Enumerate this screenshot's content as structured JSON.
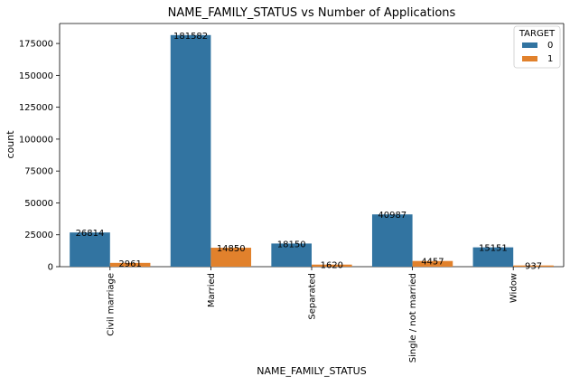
{
  "chart_data": {
    "type": "bar",
    "title": "NAME_FAMILY_STATUS vs Number of Applications",
    "xlabel": "NAME_FAMILY_STATUS",
    "ylabel": "count",
    "categories": [
      "Civil marriage",
      "Married",
      "Separated",
      "Single / not married",
      "Widow"
    ],
    "series": [
      {
        "name": "0",
        "color": "#3274a1",
        "values": [
          26814,
          181582,
          18150,
          40987,
          15151
        ]
      },
      {
        "name": "1",
        "color": "#e1812c",
        "values": [
          2961,
          14850,
          1620,
          4457,
          937
        ]
      }
    ],
    "yticks": [
      0,
      25000,
      50000,
      75000,
      100000,
      125000,
      150000,
      175000
    ],
    "ylim": [
      0,
      190660
    ],
    "grid": false,
    "legend": {
      "title": "TARGET",
      "position": "top-right"
    }
  }
}
